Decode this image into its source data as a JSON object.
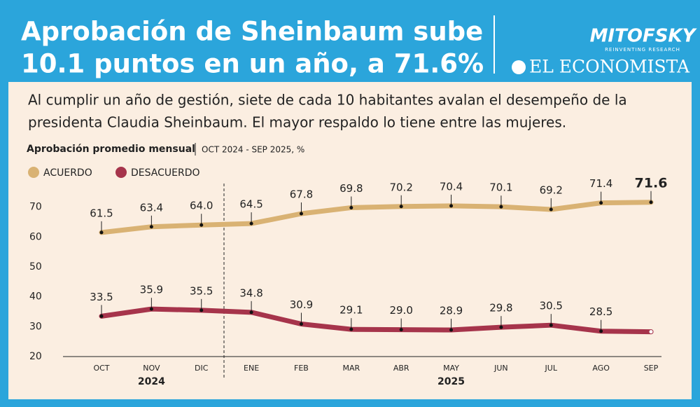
{
  "header": {
    "title_lines": [
      "Aprobación de Sheinbaum sube",
      "10.1 puntos en un año, a 71.6%"
    ],
    "logo": "MITOFSKY",
    "logo_tagline": "REINVENTING RESEARCH",
    "publisher": "EL ECONOMISTA"
  },
  "subtitle_lines": [
    "Al cumplir un año de gestión, siete de cada 10 habitantes avalan el desempeño de la",
    "presidenta Claudia Sheinbaum. El mayor respaldo lo tiene entre las mujeres."
  ],
  "chart_data": {
    "type": "line",
    "title": "Aprobación promedio mensual",
    "subtitle": "OCT 2024 - SEP 2025, %",
    "categories": [
      "OCT",
      "NOV",
      "DIC",
      "ENE",
      "FEB",
      "MAR",
      "ABR",
      "MAY",
      "JUN",
      "JUL",
      "AGO",
      "SEP"
    ],
    "groups": [
      {
        "label": "2024",
        "count": 3
      },
      {
        "label": "2025",
        "count": 9
      }
    ],
    "series": [
      {
        "name": "ACUERDO",
        "color": "#d9b273",
        "values": [
          61.5,
          63.4,
          64.0,
          64.5,
          67.8,
          69.8,
          70.2,
          70.4,
          70.1,
          69.2,
          71.4,
          71.6
        ],
        "value_labels": [
          "61.5",
          "63.4",
          "64.0",
          "64.5",
          "67.8",
          "69.8",
          "70.2",
          "70.4",
          "70.1",
          "69.2",
          "71.4",
          "71.6"
        ]
      },
      {
        "name": "DESACUERDO",
        "color": "#a6344b",
        "values": [
          33.5,
          35.9,
          35.5,
          34.8,
          30.9,
          29.1,
          29.0,
          28.9,
          29.8,
          30.5,
          28.5,
          28.3
        ],
        "value_labels": [
          "33.5",
          "35.9",
          "35.5",
          "34.8",
          "30.9",
          "29.1",
          "29.0",
          "28.9",
          "29.8",
          "30.5",
          "28.5",
          null
        ]
      }
    ],
    "ylim": [
      20,
      76
    ],
    "yticks": [
      20,
      30,
      40,
      50,
      60,
      70
    ],
    "legend": "top-left"
  }
}
